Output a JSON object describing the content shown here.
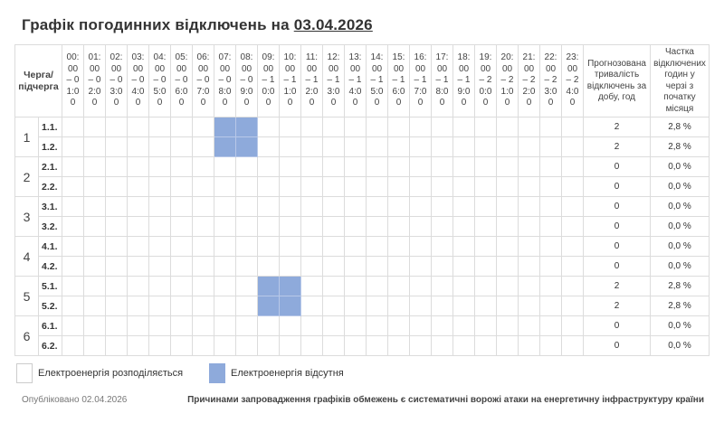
{
  "title": {
    "text": "Графік погодинних відключень на",
    "date": "03.04.2026"
  },
  "table": {
    "queue_header": "Черга/ підчерга",
    "hours": [
      "00:00 – 01:00",
      "01:00 – 02:00",
      "02:00 – 03:00",
      "03:00 – 04:00",
      "04:00 – 05:00",
      "05:00 – 06:00",
      "06:00 – 07:00",
      "07:00 – 08:00",
      "08:00 – 09:00",
      "09:00 – 10:00",
      "10:00 – 11:00",
      "11:00 – 12:00",
      "12:00 – 13:00",
      "13:00 – 14:00",
      "14:00 – 15:00",
      "15:00 – 16:00",
      "16:00 – 17:00",
      "17:00 – 18:00",
      "18:00 – 19:00",
      "19:00 – 20:00",
      "20:00 – 21:00",
      "21:00 – 22:00",
      "22:00 – 23:00",
      "23:00 – 24:00"
    ],
    "duration_header": "Прогнозована тривалість відключень за добу, год",
    "share_header": "Частка відключених годин у черзі з початку місяця",
    "groups": [
      {
        "label": "1",
        "subs": [
          {
            "label": "1.1.",
            "off": [
              7,
              8
            ],
            "duration": "2",
            "share": "2,8 %"
          },
          {
            "label": "1.2.",
            "off": [
              7,
              8
            ],
            "duration": "2",
            "share": "2,8 %"
          }
        ]
      },
      {
        "label": "2",
        "subs": [
          {
            "label": "2.1.",
            "off": [],
            "duration": "0",
            "share": "0,0 %"
          },
          {
            "label": "2.2.",
            "off": [],
            "duration": "0",
            "share": "0,0 %"
          }
        ]
      },
      {
        "label": "3",
        "subs": [
          {
            "label": "3.1.",
            "off": [],
            "duration": "0",
            "share": "0,0 %"
          },
          {
            "label": "3.2.",
            "off": [],
            "duration": "0",
            "share": "0,0 %"
          }
        ]
      },
      {
        "label": "4",
        "subs": [
          {
            "label": "4.1.",
            "off": [],
            "duration": "0",
            "share": "0,0 %"
          },
          {
            "label": "4.2.",
            "off": [],
            "duration": "0",
            "share": "0,0 %"
          }
        ]
      },
      {
        "label": "5",
        "subs": [
          {
            "label": "5.1.",
            "off": [
              9,
              10
            ],
            "duration": "2",
            "share": "2,8 %"
          },
          {
            "label": "5.2.",
            "off": [
              9,
              10
            ],
            "duration": "2",
            "share": "2,8 %"
          }
        ]
      },
      {
        "label": "6",
        "subs": [
          {
            "label": "6.1.",
            "off": [],
            "duration": "0",
            "share": "0,0 %"
          },
          {
            "label": "6.2.",
            "off": [],
            "duration": "0",
            "share": "0,0 %"
          }
        ]
      }
    ]
  },
  "legend": {
    "on": "Електроенергія розподіляється",
    "off": "Електроенергія відсутня",
    "off_color": "#8eaadb"
  },
  "footer": {
    "published": "Опубліковано 02.04.2026",
    "note": "Причинами запровадження графіків обмежень є систематичні ворожі атаки на енергетичну інфраструктуру країни"
  }
}
